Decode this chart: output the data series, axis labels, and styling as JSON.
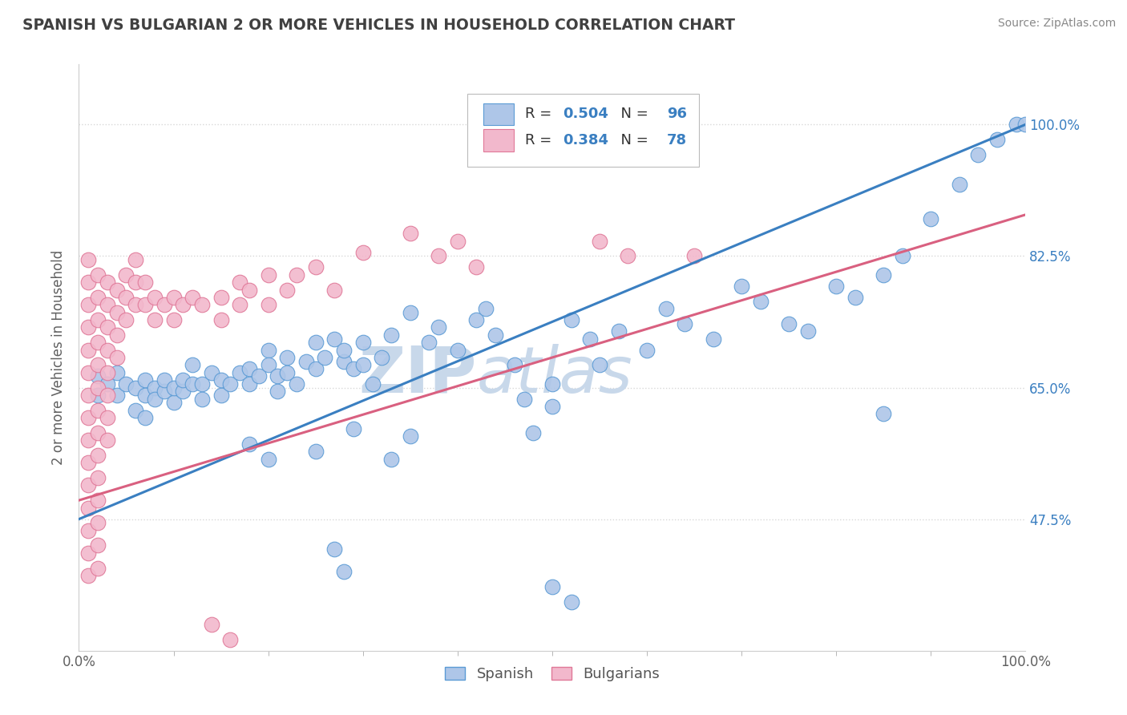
{
  "title": "SPANISH VS BULGARIAN 2 OR MORE VEHICLES IN HOUSEHOLD CORRELATION CHART",
  "source": "Source: ZipAtlas.com",
  "ylabel": "2 or more Vehicles in Household",
  "xlabel": "",
  "xlim": [
    0.0,
    1.0
  ],
  "ylim": [
    0.3,
    1.08
  ],
  "x_ticks": [
    0.0,
    1.0
  ],
  "x_tick_labels": [
    "0.0%",
    "100.0%"
  ],
  "y_ticks": [
    0.475,
    0.65,
    0.825,
    1.0
  ],
  "y_tick_labels": [
    "47.5%",
    "65.0%",
    "82.5%",
    "100.0%"
  ],
  "spanish_R": 0.504,
  "spanish_N": 96,
  "bulgarian_R": 0.384,
  "bulgarian_N": 78,
  "spanish_color": "#aec6e8",
  "bulgarian_color": "#f2b8cc",
  "spanish_edge_color": "#5b9bd5",
  "bulgarian_edge_color": "#e07898",
  "spanish_line_color": "#3a7fc1",
  "bulgarian_line_color": "#d96080",
  "watermark_zip": "ZIP",
  "watermark_atlas": "atlas",
  "watermark_color": "#c8d8ea",
  "legend_spanish_label": "Spanish",
  "legend_bulgarian_label": "Bulgarians",
  "grid_color": "#d8d8d8",
  "background_color": "#ffffff",
  "title_color": "#404040",
  "source_color": "#888888",
  "axis_label_color": "#606060",
  "tick_right_color": "#3a7fc1",
  "spanish_line_y0": 0.475,
  "spanish_line_y1": 1.0,
  "bulgarian_line_y0": 0.5,
  "bulgarian_line_y1": 0.88,
  "spanish_points": [
    [
      0.02,
      0.665
    ],
    [
      0.02,
      0.64
    ],
    [
      0.03,
      0.655
    ],
    [
      0.04,
      0.67
    ],
    [
      0.04,
      0.64
    ],
    [
      0.05,
      0.655
    ],
    [
      0.06,
      0.65
    ],
    [
      0.06,
      0.62
    ],
    [
      0.07,
      0.66
    ],
    [
      0.07,
      0.64
    ],
    [
      0.07,
      0.61
    ],
    [
      0.08,
      0.65
    ],
    [
      0.08,
      0.635
    ],
    [
      0.09,
      0.645
    ],
    [
      0.09,
      0.66
    ],
    [
      0.1,
      0.63
    ],
    [
      0.1,
      0.65
    ],
    [
      0.11,
      0.645
    ],
    [
      0.11,
      0.66
    ],
    [
      0.12,
      0.655
    ],
    [
      0.12,
      0.68
    ],
    [
      0.13,
      0.655
    ],
    [
      0.13,
      0.635
    ],
    [
      0.14,
      0.67
    ],
    [
      0.15,
      0.64
    ],
    [
      0.15,
      0.66
    ],
    [
      0.16,
      0.655
    ],
    [
      0.17,
      0.67
    ],
    [
      0.18,
      0.675
    ],
    [
      0.18,
      0.655
    ],
    [
      0.19,
      0.665
    ],
    [
      0.2,
      0.7
    ],
    [
      0.2,
      0.68
    ],
    [
      0.21,
      0.665
    ],
    [
      0.21,
      0.645
    ],
    [
      0.22,
      0.69
    ],
    [
      0.22,
      0.67
    ],
    [
      0.23,
      0.655
    ],
    [
      0.24,
      0.685
    ],
    [
      0.25,
      0.71
    ],
    [
      0.25,
      0.675
    ],
    [
      0.26,
      0.69
    ],
    [
      0.27,
      0.715
    ],
    [
      0.28,
      0.685
    ],
    [
      0.28,
      0.7
    ],
    [
      0.29,
      0.675
    ],
    [
      0.3,
      0.71
    ],
    [
      0.3,
      0.68
    ],
    [
      0.31,
      0.655
    ],
    [
      0.32,
      0.69
    ],
    [
      0.33,
      0.72
    ],
    [
      0.35,
      0.75
    ],
    [
      0.37,
      0.71
    ],
    [
      0.38,
      0.73
    ],
    [
      0.4,
      0.7
    ],
    [
      0.42,
      0.74
    ],
    [
      0.43,
      0.755
    ],
    [
      0.44,
      0.72
    ],
    [
      0.46,
      0.68
    ],
    [
      0.47,
      0.635
    ],
    [
      0.48,
      0.59
    ],
    [
      0.5,
      0.625
    ],
    [
      0.5,
      0.655
    ],
    [
      0.52,
      0.74
    ],
    [
      0.54,
      0.715
    ],
    [
      0.55,
      0.68
    ],
    [
      0.57,
      0.725
    ],
    [
      0.6,
      0.7
    ],
    [
      0.62,
      0.755
    ],
    [
      0.64,
      0.735
    ],
    [
      0.67,
      0.715
    ],
    [
      0.7,
      0.785
    ],
    [
      0.72,
      0.765
    ],
    [
      0.75,
      0.735
    ],
    [
      0.77,
      0.725
    ],
    [
      0.8,
      0.785
    ],
    [
      0.82,
      0.77
    ],
    [
      0.85,
      0.8
    ],
    [
      0.87,
      0.825
    ],
    [
      0.9,
      0.875
    ],
    [
      0.93,
      0.92
    ],
    [
      0.95,
      0.96
    ],
    [
      0.97,
      0.98
    ],
    [
      0.99,
      1.0
    ],
    [
      1.0,
      1.0
    ],
    [
      0.85,
      0.615
    ],
    [
      0.2,
      0.555
    ],
    [
      0.35,
      0.585
    ],
    [
      0.27,
      0.435
    ],
    [
      0.28,
      0.405
    ],
    [
      0.5,
      0.385
    ],
    [
      0.52,
      0.365
    ],
    [
      0.29,
      0.595
    ],
    [
      0.18,
      0.575
    ],
    [
      0.25,
      0.565
    ],
    [
      0.33,
      0.555
    ]
  ],
  "bulgarian_points": [
    [
      0.01,
      0.82
    ],
    [
      0.01,
      0.79
    ],
    [
      0.01,
      0.76
    ],
    [
      0.01,
      0.73
    ],
    [
      0.01,
      0.7
    ],
    [
      0.01,
      0.67
    ],
    [
      0.01,
      0.64
    ],
    [
      0.01,
      0.61
    ],
    [
      0.01,
      0.58
    ],
    [
      0.01,
      0.55
    ],
    [
      0.01,
      0.52
    ],
    [
      0.01,
      0.49
    ],
    [
      0.01,
      0.46
    ],
    [
      0.01,
      0.43
    ],
    [
      0.01,
      0.4
    ],
    [
      0.02,
      0.8
    ],
    [
      0.02,
      0.77
    ],
    [
      0.02,
      0.74
    ],
    [
      0.02,
      0.71
    ],
    [
      0.02,
      0.68
    ],
    [
      0.02,
      0.65
    ],
    [
      0.02,
      0.62
    ],
    [
      0.02,
      0.59
    ],
    [
      0.02,
      0.56
    ],
    [
      0.02,
      0.53
    ],
    [
      0.02,
      0.5
    ],
    [
      0.02,
      0.47
    ],
    [
      0.02,
      0.44
    ],
    [
      0.02,
      0.41
    ],
    [
      0.03,
      0.79
    ],
    [
      0.03,
      0.76
    ],
    [
      0.03,
      0.73
    ],
    [
      0.03,
      0.7
    ],
    [
      0.03,
      0.67
    ],
    [
      0.03,
      0.64
    ],
    [
      0.03,
      0.61
    ],
    [
      0.03,
      0.58
    ],
    [
      0.04,
      0.78
    ],
    [
      0.04,
      0.75
    ],
    [
      0.04,
      0.72
    ],
    [
      0.04,
      0.69
    ],
    [
      0.05,
      0.8
    ],
    [
      0.05,
      0.77
    ],
    [
      0.05,
      0.74
    ],
    [
      0.06,
      0.82
    ],
    [
      0.06,
      0.79
    ],
    [
      0.06,
      0.76
    ],
    [
      0.07,
      0.79
    ],
    [
      0.07,
      0.76
    ],
    [
      0.08,
      0.77
    ],
    [
      0.08,
      0.74
    ],
    [
      0.09,
      0.76
    ],
    [
      0.1,
      0.77
    ],
    [
      0.1,
      0.74
    ],
    [
      0.11,
      0.76
    ],
    [
      0.12,
      0.77
    ],
    [
      0.13,
      0.76
    ],
    [
      0.15,
      0.77
    ],
    [
      0.15,
      0.74
    ],
    [
      0.17,
      0.79
    ],
    [
      0.17,
      0.76
    ],
    [
      0.18,
      0.78
    ],
    [
      0.2,
      0.8
    ],
    [
      0.2,
      0.76
    ],
    [
      0.22,
      0.78
    ],
    [
      0.23,
      0.8
    ],
    [
      0.25,
      0.81
    ],
    [
      0.27,
      0.78
    ],
    [
      0.3,
      0.83
    ],
    [
      0.35,
      0.855
    ],
    [
      0.38,
      0.825
    ],
    [
      0.4,
      0.845
    ],
    [
      0.42,
      0.81
    ],
    [
      0.55,
      0.845
    ],
    [
      0.65,
      0.825
    ],
    [
      0.58,
      0.825
    ],
    [
      0.14,
      0.335
    ],
    [
      0.16,
      0.315
    ]
  ]
}
